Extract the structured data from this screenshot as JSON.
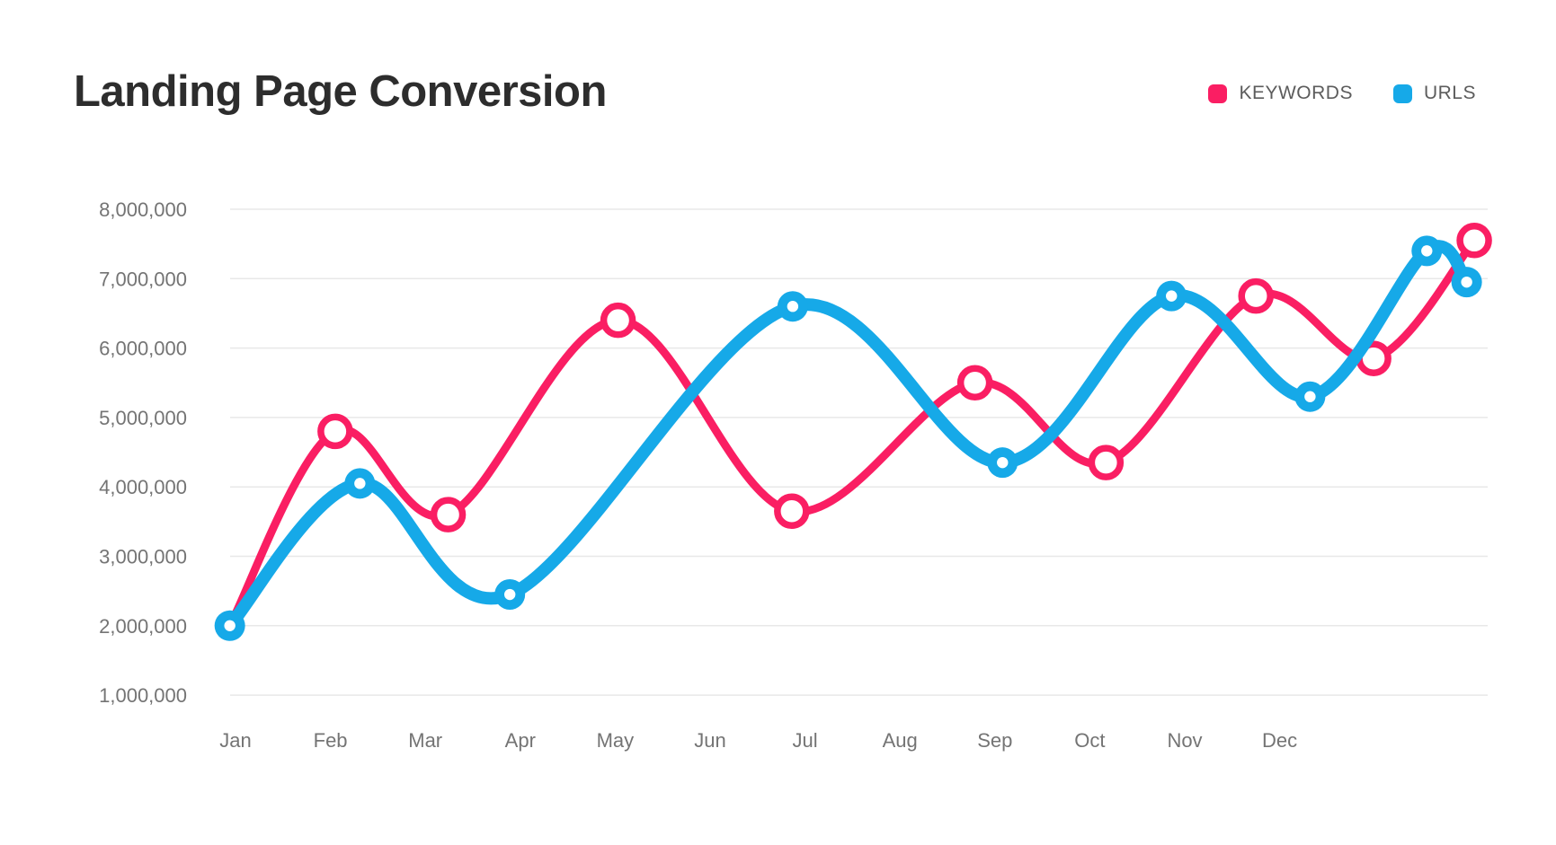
{
  "title": "Landing Page Conversion",
  "legend": {
    "position": "top-right",
    "items": [
      {
        "label": "KEYWORDS",
        "color": "#fa1e63"
      },
      {
        "label": "URLS",
        "color": "#16a9e8"
      }
    ]
  },
  "chart_data": {
    "type": "line",
    "title": "Landing Page Conversion",
    "x_axis": {
      "categories": [
        "Jan",
        "Feb",
        "Mar",
        "Apr",
        "May",
        "Jun",
        "Jul",
        "Aug",
        "Sep",
        "Oct",
        "Nov",
        "Dec"
      ],
      "range_months": [
        -0.3,
        13.2
      ]
    },
    "y_axis": {
      "tick_values": [
        8000000,
        7000000,
        6000000,
        5000000,
        4000000,
        3000000,
        2000000,
        1000000
      ],
      "tick_format": "comma-separated",
      "ylim": [
        1000000,
        8000000
      ]
    },
    "grid": {
      "horizontal": true,
      "vertical": false,
      "color": "#e8e8e8"
    },
    "legend_position": "top-right",
    "series": [
      {
        "name": "KEYWORDS",
        "color": "#fa1e63",
        "line_width": 9,
        "marker": "open-circle",
        "marker_radius": 16,
        "marker_stroke_width": 7.5,
        "points": [
          {
            "month": -0.06,
            "value": 2000000,
            "marker": false
          },
          {
            "month": 1.05,
            "value": 4800000,
            "marker": true
          },
          {
            "month": 2.24,
            "value": 3600000,
            "marker": true
          },
          {
            "month": 4.03,
            "value": 6400000,
            "marker": true
          },
          {
            "month": 5.86,
            "value": 3650000,
            "marker": true
          },
          {
            "month": 7.79,
            "value": 5500000,
            "marker": true
          },
          {
            "month": 9.17,
            "value": 4350000,
            "marker": true
          },
          {
            "month": 10.75,
            "value": 6750000,
            "marker": true
          },
          {
            "month": 11.99,
            "value": 5850000,
            "marker": true
          },
          {
            "month": 13.05,
            "value": 7550000,
            "marker": true
          }
        ]
      },
      {
        "name": "URLS",
        "color": "#16a9e8",
        "line_width": 14,
        "marker": "donut",
        "marker_radius": 17,
        "marker_hole_radius": 6.2,
        "points": [
          {
            "month": -0.06,
            "value": 2000000,
            "marker": true
          },
          {
            "month": 1.31,
            "value": 4050000,
            "marker": true
          },
          {
            "month": 2.89,
            "value": 2450000,
            "marker": true
          },
          {
            "month": 5.87,
            "value": 6600000,
            "marker": true
          },
          {
            "month": 8.08,
            "value": 4350000,
            "marker": true
          },
          {
            "month": 9.86,
            "value": 6750000,
            "marker": true
          },
          {
            "month": 11.32,
            "value": 5300000,
            "marker": true
          },
          {
            "month": 12.55,
            "value": 7400000,
            "marker": true
          },
          {
            "month": 12.97,
            "value": 6950000,
            "marker": true
          }
        ]
      }
    ]
  }
}
